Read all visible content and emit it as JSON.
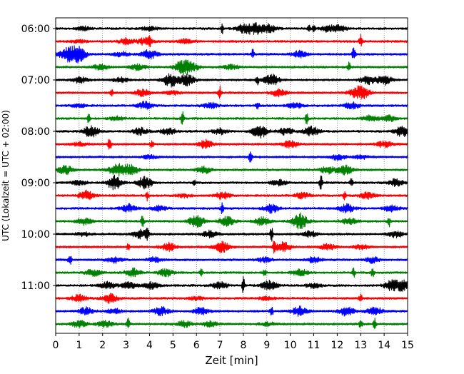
{
  "chart_data": {
    "type": "line",
    "chart_kind": "helicorder-seismogram",
    "title": "",
    "xlabel": "Zeit  [min]",
    "ylabel": "UTC (Lokalzeit = UTC + 02:00)",
    "xlim": [
      0,
      15
    ],
    "x_ticks": [
      0,
      1,
      2,
      3,
      4,
      5,
      6,
      7,
      8,
      9,
      10,
      11,
      12,
      13,
      14,
      15
    ],
    "x_tick_labels": [
      "0",
      "1",
      "2",
      "3",
      "4",
      "5",
      "6",
      "7",
      "8",
      "9",
      "10",
      "11",
      "12",
      "13",
      "14",
      "15"
    ],
    "y_tick_labels": [
      "06:00",
      "07:00",
      "08:00",
      "09:00",
      "10:00",
      "11:00"
    ],
    "y_tick_rows": [
      0,
      4,
      8,
      12,
      16,
      20
    ],
    "vertical_grid": true,
    "grid_style": "dotted",
    "line_colors": [
      "#000000",
      "#ff0000",
      "#0000ff",
      "#008000"
    ],
    "traces": [
      {
        "start": "06:00",
        "events": [
          [
            7.1,
            0.4,
            "spike"
          ],
          [
            8.0,
            0.35,
            "burst"
          ],
          [
            8.5,
            0.5,
            "burst"
          ],
          [
            9.1,
            0.35,
            "burst"
          ],
          [
            10.8,
            0.3,
            "spike"
          ],
          [
            11.0,
            0.3,
            "spike"
          ],
          [
            11.6,
            0.25,
            "burst"
          ],
          [
            12.1,
            0.25,
            "burst"
          ],
          [
            4.0,
            0.2,
            "burst"
          ],
          [
            1.2,
            0.15,
            "burst"
          ]
        ]
      },
      {
        "start": "06:15",
        "events": [
          [
            3.0,
            0.25,
            "burst"
          ],
          [
            3.8,
            0.3,
            "burst"
          ],
          [
            4.0,
            0.5,
            "spike"
          ],
          [
            5.5,
            0.2,
            "burst"
          ],
          [
            13.0,
            0.55,
            "spike"
          ],
          [
            1.0,
            0.15,
            "burst"
          ]
        ]
      },
      {
        "start": "06:30",
        "events": [
          [
            0.5,
            0.7,
            "burst"
          ],
          [
            1.0,
            0.6,
            "burst"
          ],
          [
            4.0,
            0.4,
            "burst"
          ],
          [
            8.4,
            0.45,
            "spike"
          ],
          [
            10.4,
            0.3,
            "burst"
          ],
          [
            12.7,
            0.65,
            "spike"
          ],
          [
            2.8,
            0.2,
            "burst"
          ]
        ]
      },
      {
        "start": "06:45",
        "events": [
          [
            1.9,
            0.25,
            "burst"
          ],
          [
            3.5,
            0.25,
            "burst"
          ],
          [
            5.4,
            0.55,
            "burst"
          ],
          [
            5.8,
            0.3,
            "burst"
          ],
          [
            12.5,
            0.5,
            "spike"
          ],
          [
            7.5,
            0.2,
            "burst"
          ]
        ]
      },
      {
        "start": "07:00",
        "events": [
          [
            1.0,
            0.25,
            "burst"
          ],
          [
            4.9,
            0.6,
            "burst"
          ],
          [
            5.6,
            0.45,
            "burst"
          ],
          [
            8.6,
            0.4,
            "spike"
          ],
          [
            9.2,
            0.5,
            "burst"
          ],
          [
            13.3,
            0.35,
            "burst"
          ],
          [
            14.0,
            0.4,
            "burst"
          ],
          [
            2.8,
            0.2,
            "burst"
          ]
        ]
      },
      {
        "start": "07:15",
        "events": [
          [
            2.4,
            0.4,
            "spike"
          ],
          [
            3.7,
            0.3,
            "burst"
          ],
          [
            7.0,
            0.55,
            "spike"
          ],
          [
            9.5,
            0.3,
            "burst"
          ],
          [
            12.8,
            0.35,
            "burst"
          ],
          [
            13.1,
            0.35,
            "burst"
          ],
          [
            5.0,
            0.15,
            "burst"
          ]
        ]
      },
      {
        "start": "07:30",
        "events": [
          [
            3.8,
            0.3,
            "burst"
          ],
          [
            6.6,
            0.25,
            "burst"
          ],
          [
            8.6,
            0.55,
            "spike"
          ],
          [
            10.2,
            0.25,
            "burst"
          ],
          [
            12.6,
            0.3,
            "burst"
          ],
          [
            1.0,
            0.15,
            "burst"
          ]
        ]
      },
      {
        "start": "07:45",
        "events": [
          [
            1.4,
            0.4,
            "spike"
          ],
          [
            2.6,
            0.2,
            "burst"
          ],
          [
            5.4,
            0.6,
            "spike"
          ],
          [
            10.7,
            0.45,
            "spike"
          ],
          [
            13.4,
            0.25,
            "burst"
          ],
          [
            14.2,
            0.25,
            "burst"
          ]
        ]
      },
      {
        "start": "08:00",
        "events": [
          [
            1.5,
            0.5,
            "burst"
          ],
          [
            3.6,
            0.3,
            "burst"
          ],
          [
            4.8,
            0.3,
            "burst"
          ],
          [
            8.7,
            0.55,
            "burst"
          ],
          [
            9.8,
            0.3,
            "burst"
          ],
          [
            10.9,
            0.4,
            "burst"
          ],
          [
            14.8,
            0.5,
            "burst"
          ],
          [
            7.0,
            0.25,
            "burst"
          ]
        ]
      },
      {
        "start": "08:15",
        "events": [
          [
            2.3,
            0.7,
            "spike"
          ],
          [
            4.1,
            0.3,
            "spike"
          ],
          [
            6.4,
            0.4,
            "burst"
          ],
          [
            10.0,
            0.3,
            "burst"
          ],
          [
            14.0,
            0.25,
            "burst"
          ],
          [
            1.0,
            0.15,
            "burst"
          ]
        ]
      },
      {
        "start": "08:30",
        "events": [
          [
            8.3,
            0.5,
            "spike"
          ],
          [
            12.0,
            0.25,
            "burst"
          ],
          [
            4.0,
            0.15,
            "burst"
          ],
          [
            13.0,
            0.15,
            "burst"
          ]
        ]
      },
      {
        "start": "08:45",
        "events": [
          [
            0.4,
            0.35,
            "burst"
          ],
          [
            2.6,
            0.55,
            "burst"
          ],
          [
            3.2,
            0.45,
            "burst"
          ],
          [
            6.3,
            0.3,
            "burst"
          ],
          [
            11.6,
            0.3,
            "burst"
          ],
          [
            12.3,
            0.4,
            "burst"
          ]
        ]
      },
      {
        "start": "09:00",
        "events": [
          [
            2.5,
            0.6,
            "burst"
          ],
          [
            3.8,
            0.5,
            "burst"
          ],
          [
            5.9,
            0.35,
            "spike"
          ],
          [
            9.5,
            0.25,
            "burst"
          ],
          [
            11.3,
            0.7,
            "spike"
          ],
          [
            12.6,
            0.4,
            "spike"
          ],
          [
            14.5,
            0.3,
            "burst"
          ],
          [
            1.0,
            0.2,
            "burst"
          ]
        ]
      },
      {
        "start": "09:15",
        "events": [
          [
            1.3,
            0.4,
            "burst"
          ],
          [
            3.9,
            0.4,
            "spike"
          ],
          [
            7.1,
            0.3,
            "burst"
          ],
          [
            10.5,
            0.25,
            "burst"
          ],
          [
            12.3,
            0.4,
            "spike"
          ],
          [
            13.3,
            0.3,
            "burst"
          ],
          [
            5.5,
            0.15,
            "burst"
          ]
        ]
      },
      {
        "start": "09:30",
        "events": [
          [
            3.1,
            0.35,
            "burst"
          ],
          [
            4.4,
            0.25,
            "burst"
          ],
          [
            7.1,
            0.5,
            "spike"
          ],
          [
            9.2,
            0.4,
            "burst"
          ],
          [
            12.4,
            0.35,
            "burst"
          ],
          [
            14.3,
            0.25,
            "burst"
          ]
        ]
      },
      {
        "start": "09:45",
        "events": [
          [
            1.2,
            0.3,
            "burst"
          ],
          [
            3.7,
            0.6,
            "spike"
          ],
          [
            6.0,
            0.55,
            "burst"
          ],
          [
            7.3,
            0.4,
            "burst"
          ],
          [
            8.8,
            0.35,
            "burst"
          ],
          [
            10.4,
            0.7,
            "burst"
          ],
          [
            14.2,
            0.5,
            "spike"
          ],
          [
            12.5,
            0.25,
            "burst"
          ]
        ]
      },
      {
        "start": "10:00",
        "events": [
          [
            3.6,
            0.35,
            "burst"
          ],
          [
            3.9,
            0.5,
            "spike"
          ],
          [
            6.6,
            0.3,
            "burst"
          ],
          [
            9.2,
            0.65,
            "spike"
          ],
          [
            10.8,
            0.25,
            "burst"
          ],
          [
            14.5,
            0.25,
            "burst"
          ],
          [
            1.2,
            0.15,
            "burst"
          ]
        ]
      },
      {
        "start": "10:15",
        "events": [
          [
            3.1,
            0.3,
            "spike"
          ],
          [
            4.8,
            0.35,
            "burst"
          ],
          [
            7.1,
            0.45,
            "burst"
          ],
          [
            9.3,
            0.6,
            "spike"
          ],
          [
            9.7,
            0.4,
            "burst"
          ],
          [
            11.6,
            0.25,
            "burst"
          ],
          [
            13.0,
            0.2,
            "burst"
          ]
        ]
      },
      {
        "start": "10:30",
        "events": [
          [
            0.6,
            0.55,
            "spike"
          ],
          [
            2.5,
            0.25,
            "burst"
          ],
          [
            4.2,
            0.2,
            "burst"
          ],
          [
            8.9,
            0.2,
            "burst"
          ],
          [
            11.0,
            0.25,
            "burst"
          ],
          [
            13.5,
            0.25,
            "burst"
          ]
        ]
      },
      {
        "start": "10:45",
        "events": [
          [
            1.6,
            0.3,
            "burst"
          ],
          [
            3.3,
            0.35,
            "burst"
          ],
          [
            4.7,
            0.3,
            "burst"
          ],
          [
            6.2,
            0.55,
            "spike"
          ],
          [
            8.9,
            0.35,
            "spike"
          ],
          [
            10.4,
            0.3,
            "burst"
          ],
          [
            12.7,
            0.45,
            "spike"
          ],
          [
            13.5,
            0.45,
            "spike"
          ]
        ]
      },
      {
        "start": "11:00",
        "events": [
          [
            2.2,
            0.3,
            "burst"
          ],
          [
            3.1,
            0.3,
            "burst"
          ],
          [
            4.1,
            0.3,
            "burst"
          ],
          [
            7.0,
            0.3,
            "burst"
          ],
          [
            8.0,
            0.7,
            "spike"
          ],
          [
            9.1,
            0.4,
            "burst"
          ],
          [
            11.0,
            0.2,
            "burst"
          ],
          [
            14.3,
            0.4,
            "burst"
          ],
          [
            14.8,
            0.45,
            "burst"
          ]
        ]
      },
      {
        "start": "11:15",
        "events": [
          [
            1.0,
            0.3,
            "burst"
          ],
          [
            2.3,
            0.4,
            "burst"
          ],
          [
            13.0,
            0.45,
            "spike"
          ],
          [
            6.0,
            0.15,
            "burst"
          ],
          [
            9.0,
            0.15,
            "burst"
          ]
        ]
      },
      {
        "start": "11:30",
        "events": [
          [
            1.3,
            0.35,
            "burst"
          ],
          [
            4.5,
            0.35,
            "burst"
          ],
          [
            6.2,
            0.3,
            "burst"
          ],
          [
            9.2,
            0.4,
            "spike"
          ],
          [
            10.4,
            0.4,
            "burst"
          ],
          [
            12.4,
            0.4,
            "burst"
          ],
          [
            13.6,
            0.35,
            "burst"
          ],
          [
            2.5,
            0.2,
            "burst"
          ]
        ]
      },
      {
        "start": "11:45",
        "events": [
          [
            1.0,
            0.3,
            "burst"
          ],
          [
            2.1,
            0.3,
            "burst"
          ],
          [
            3.1,
            0.5,
            "spike"
          ],
          [
            5.5,
            0.25,
            "burst"
          ],
          [
            6.6,
            0.25,
            "burst"
          ],
          [
            13.0,
            0.4,
            "spike"
          ],
          [
            13.6,
            0.5,
            "spike"
          ],
          [
            9.0,
            0.15,
            "burst"
          ]
        ]
      }
    ]
  }
}
